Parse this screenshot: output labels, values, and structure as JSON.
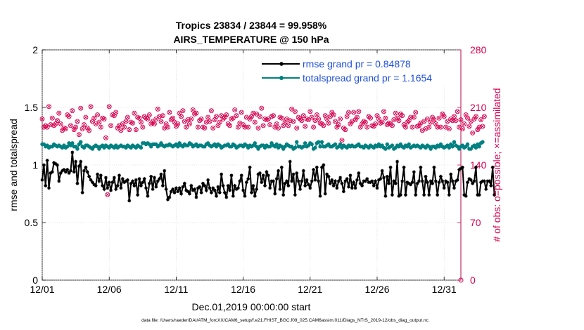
{
  "colors": {
    "rmse": "#000000",
    "spread": "#008080",
    "obs": "#d6004f",
    "legend_text": "#1f4fdc",
    "axis": "#000000"
  },
  "chart_data": {
    "type": "line",
    "title": "Tropics 23834 / 23844 = 99.958%",
    "subtitle": "AIRS_TEMPERATURE @ 150 hPa",
    "xlabel": "Dec.01,2019 00:00:00 start",
    "ylabel": "rmse and totalspread",
    "y2label": "# of obs: o=possible; ×=assimilated",
    "footnote": "data file: /Users/raeder/DAI/ATM_forcXX/CAM6_setup/f.e21.FHIST_BGC.f09_025.CAM6assim.011/Diags_NTrS_2019-12/obs_diag_output.nc",
    "xlim": [
      1,
      32.25
    ],
    "ylim": [
      0,
      2
    ],
    "y2lim": [
      0,
      280
    ],
    "x_ticks": [
      1,
      6,
      11,
      16,
      21,
      26,
      31
    ],
    "x_tick_labels": [
      "12/01",
      "12/06",
      "12/11",
      "12/16",
      "12/21",
      "12/26",
      "12/31"
    ],
    "y_ticks": [
      "0",
      "0.5",
      "1",
      "1.5",
      "2"
    ],
    "y2_ticks": [
      "0",
      "70",
      "140",
      "210",
      "280"
    ],
    "legend": {
      "position": "top-right",
      "entries": [
        "rmse grand pr = 0.84878",
        "totalspread grand pr = 1.1654"
      ]
    },
    "series": [
      {
        "name": "rmse",
        "axis": "left",
        "marker": "asterisk",
        "values": [
          0.87,
          1.0,
          0.82,
          1.04,
          0.8,
          0.93,
          0.94,
          1.02,
          1.01,
          1.0,
          0.86,
          0.93,
          0.95,
          0.96,
          0.94,
          0.96,
          0.93,
          0.95,
          1.11,
          0.94,
          1.03,
          0.84,
          0.99,
          1.03,
          0.76,
          0.95,
          0.98,
          0.94,
          0.9,
          0.87,
          0.85,
          0.83,
          0.82,
          0.92,
          0.86,
          0.91,
          0.82,
          0.79,
          0.89,
          0.8,
          0.85,
          0.78,
          0.85,
          0.89,
          0.79,
          0.82,
          0.91,
          0.8,
          0.88,
          0.85,
          0.86,
          0.87,
          0.69,
          0.84,
          0.86,
          0.82,
          0.87,
          0.74,
          0.88,
          0.82,
          0.85,
          0.88,
          0.8,
          0.73,
          0.84,
          0.9,
          0.79,
          0.89,
          0.81,
          0.86,
          0.88,
          0.92,
          0.82,
          0.95,
          0.79,
          0.7,
          0.72,
          0.77,
          0.79,
          0.76,
          0.8,
          0.77,
          0.8,
          0.75,
          0.81,
          0.84,
          0.78,
          0.77,
          0.75,
          0.82,
          0.78,
          0.79,
          0.72,
          0.8,
          0.81,
          0.76,
          0.84,
          0.82,
          0.78,
          0.87,
          0.8,
          0.76,
          0.8,
          0.78,
          0.73,
          0.81,
          0.76,
          0.92,
          0.82,
          0.76,
          0.72,
          0.82,
          0.78,
          0.91,
          0.73,
          0.82,
          0.79,
          0.8,
          0.86,
          0.91,
          0.78,
          0.73,
          0.85,
          0.88,
          0.98,
          0.76,
          0.82,
          0.73,
          0.79,
          0.92,
          0.93,
          0.85,
          0.91,
          0.82,
          0.94,
          0.91,
          0.8,
          0.86,
          0.86,
          0.75,
          0.88,
          0.95,
          0.79,
          0.98,
          0.74,
          0.84,
          0.86,
          0.82,
          1.03,
          0.86,
          0.92,
          0.74,
          0.93,
          0.86,
          0.79,
          0.86,
          0.95,
          0.82,
          0.87,
          0.83,
          0.8,
          0.86,
          0.96,
          0.87,
          0.98,
          0.86,
          0.73,
          0.98,
          1.0,
          0.75,
          0.92,
          0.9,
          0.84,
          0.87,
          0.82,
          0.86,
          0.8,
          0.86,
          0.89,
          0.84,
          0.77,
          0.86,
          0.88,
          0.81,
          0.91,
          0.8,
          0.85,
          0.8,
          0.87,
          0.93,
          0.84,
          0.82,
          0.86,
          0.86,
          0.88,
          0.85,
          0.85,
          0.86,
          0.82,
          0.86,
          0.8,
          0.87,
          0.88,
          0.95,
          0.89,
          0.73,
          0.9,
          0.84,
          0.98,
          0.74,
          0.86,
          0.84,
          1.03,
          0.73,
          0.74,
          0.86,
          0.98,
          0.74,
          0.85,
          0.84,
          0.83,
          0.85,
          0.94,
          0.74,
          0.84,
          0.86,
          0.98,
          0.86,
          0.74,
          0.9,
          0.85,
          0.74,
          0.86,
          0.84,
          0.98,
          0.86,
          0.74,
          0.85,
          0.9,
          0.86,
          0.8,
          0.86,
          0.85,
          0.74,
          0.92,
          0.86,
          0.8,
          0.86,
          0.87,
          0.96,
          0.97,
          0.98,
          0.74,
          0.73,
          0.85,
          0.88,
          0.87,
          0.84,
          0.86,
          0.98,
          0.74,
          0.74,
          0.85,
          0.86,
          0.86,
          0.79,
          0.86,
          0.86,
          0.82,
          0.98,
          0.74
        ]
      },
      {
        "name": "totalspread",
        "axis": "left",
        "marker": "circle",
        "values": [
          1.18,
          1.18,
          1.16,
          1.17,
          1.15,
          1.16,
          1.16,
          1.18,
          1.17,
          1.16,
          1.17,
          1.16,
          1.15,
          1.17,
          1.15,
          1.16,
          1.19,
          1.17,
          1.19,
          1.16,
          1.16,
          1.14,
          1.18,
          1.2,
          1.16,
          1.15,
          1.17,
          1.17,
          1.16,
          1.15,
          1.14,
          1.16,
          1.17,
          1.16,
          1.14,
          1.16,
          1.17,
          1.15,
          1.17,
          1.16,
          1.15,
          1.17,
          1.16,
          1.15,
          1.17,
          1.15,
          1.16,
          1.17,
          1.16,
          1.16,
          1.15,
          1.17,
          1.16,
          1.15,
          1.17,
          1.16,
          1.15,
          1.17,
          1.16,
          1.15,
          1.19,
          1.19,
          1.18,
          1.19,
          1.18,
          1.16,
          1.18,
          1.18,
          1.18,
          1.16,
          1.17,
          1.19,
          1.17,
          1.16,
          1.17,
          1.17,
          1.18,
          1.17,
          1.16,
          1.17,
          1.18,
          1.16,
          1.19,
          1.17,
          1.16,
          1.18,
          1.17,
          1.17,
          1.19,
          1.18,
          1.16,
          1.17,
          1.18,
          1.16,
          1.17,
          1.17,
          1.16,
          1.16,
          1.18,
          1.19,
          1.17,
          1.16,
          1.17,
          1.18,
          1.16,
          1.18,
          1.17,
          1.15,
          1.16,
          1.17,
          1.17,
          1.18,
          1.16,
          1.16,
          1.18,
          1.17,
          1.15,
          1.16,
          1.17,
          1.17,
          1.16,
          1.18,
          1.17,
          1.15,
          1.17,
          1.16,
          1.17,
          1.19,
          1.16,
          1.14,
          1.16,
          1.17,
          1.17,
          1.15,
          1.17,
          1.16,
          1.16,
          1.19,
          1.17,
          1.16,
          1.18,
          1.15,
          1.17,
          1.16,
          1.14,
          1.16,
          1.18,
          1.17,
          1.16,
          1.16,
          1.14,
          1.15,
          1.2,
          1.16,
          1.16,
          1.15,
          1.16,
          1.19,
          1.16,
          1.17,
          1.19,
          1.18,
          1.14,
          1.15,
          1.19,
          1.2,
          1.16,
          1.2,
          1.16,
          1.16,
          1.17,
          1.18,
          1.16,
          1.16,
          1.17,
          1.18,
          1.15,
          1.16,
          1.18,
          1.15,
          1.17,
          1.16,
          1.15,
          1.17,
          1.16,
          1.17,
          1.16,
          1.16,
          1.17,
          1.18,
          1.16,
          1.16,
          1.15,
          1.17,
          1.16,
          1.15,
          1.17,
          1.16,
          1.15,
          1.17,
          1.16,
          1.18,
          1.16,
          1.17,
          1.15,
          1.14,
          1.18,
          1.15,
          1.16,
          1.17,
          1.14,
          1.15,
          1.17,
          1.16,
          1.18,
          1.16,
          1.15,
          1.17,
          1.16,
          1.18,
          1.15,
          1.16,
          1.17,
          1.16,
          1.17,
          1.16,
          1.15,
          1.17,
          1.16,
          1.15,
          1.17,
          1.16,
          1.14,
          1.16,
          1.16,
          1.15,
          1.17,
          1.16,
          1.18,
          1.16,
          1.15,
          1.16,
          1.17,
          1.15,
          1.18,
          1.16,
          1.2,
          1.17,
          1.16,
          1.14,
          1.16,
          1.17,
          1.15,
          1.16,
          1.18,
          1.14,
          1.14,
          1.16,
          1.17,
          1.15,
          1.18,
          1.16,
          1.19,
          1.2
        ]
      },
      {
        "name": "obs",
        "axis": "right",
        "marker": "circle-x",
        "values": [
          196,
          186,
          188,
          186,
          211,
          189,
          197,
          188,
          190,
          194,
          203,
          190,
          182,
          185,
          184,
          201,
          199,
          188,
          206,
          183,
          186,
          193,
          177,
          209,
          184,
          189,
          198,
          185,
          182,
          211,
          193,
          197,
          190,
          201,
          192,
          186,
          197,
          196,
          173,
          104,
          211,
          188,
          201,
          200,
          204,
          185,
          188,
          182,
          190,
          186,
          193,
          198,
          183,
          192,
          191,
          203,
          183,
          198,
          197,
          192,
          186,
          199,
          197,
          196,
          201,
          190,
          193,
          190,
          196,
          208,
          199,
          193,
          200,
          185,
          190,
          186,
          204,
          195,
          197,
          192,
          187,
          190,
          203,
          199,
          206,
          193,
          186,
          195,
          190,
          196,
          207,
          202,
          203,
          186,
          194,
          196,
          186,
          185,
          192,
          198,
          193,
          206,
          185,
          195,
          199,
          188,
          192,
          200,
          196,
          198,
          201,
          190,
          188,
          196,
          197,
          207,
          200,
          186,
          191,
          204,
          189,
          186,
          198,
          186,
          196,
          199,
          203,
          192,
          202,
          185,
          199,
          209,
          188,
          196,
          195,
          196,
          189,
          199,
          200,
          186,
          190,
          185,
          198,
          197,
          188,
          192,
          196,
          188,
          194,
          208,
          193,
          205,
          185,
          198,
          196,
          194,
          200,
          187,
          196,
          195,
          205,
          198,
          186,
          194,
          201,
          196,
          191,
          190,
          188,
          200,
          196,
          191,
          199,
          204,
          201,
          193,
          186,
          189,
          196,
          170,
          185,
          183,
          199,
          204,
          190,
          193,
          204,
          195,
          198,
          205,
          186,
          190,
          193,
          192,
          186,
          199,
          197,
          188,
          187,
          190,
          200,
          196,
          191,
          192,
          205,
          197,
          189,
          191,
          190,
          188,
          195,
          203,
          197,
          194,
          202,
          200,
          189,
          186,
          192,
          194,
          198,
          186,
          198,
          204,
          187,
          188,
          191,
          182,
          193,
          184,
          196,
          186,
          192,
          198,
          195,
          190,
          186,
          197,
          186,
          202,
          199,
          186,
          193,
          184,
          196,
          194,
          199,
          194,
          205,
          186,
          195,
          184,
          190,
          201,
          197,
          187,
          193,
          179,
          196,
          199,
          183,
          186,
          195,
          187,
          199
        ]
      }
    ]
  }
}
